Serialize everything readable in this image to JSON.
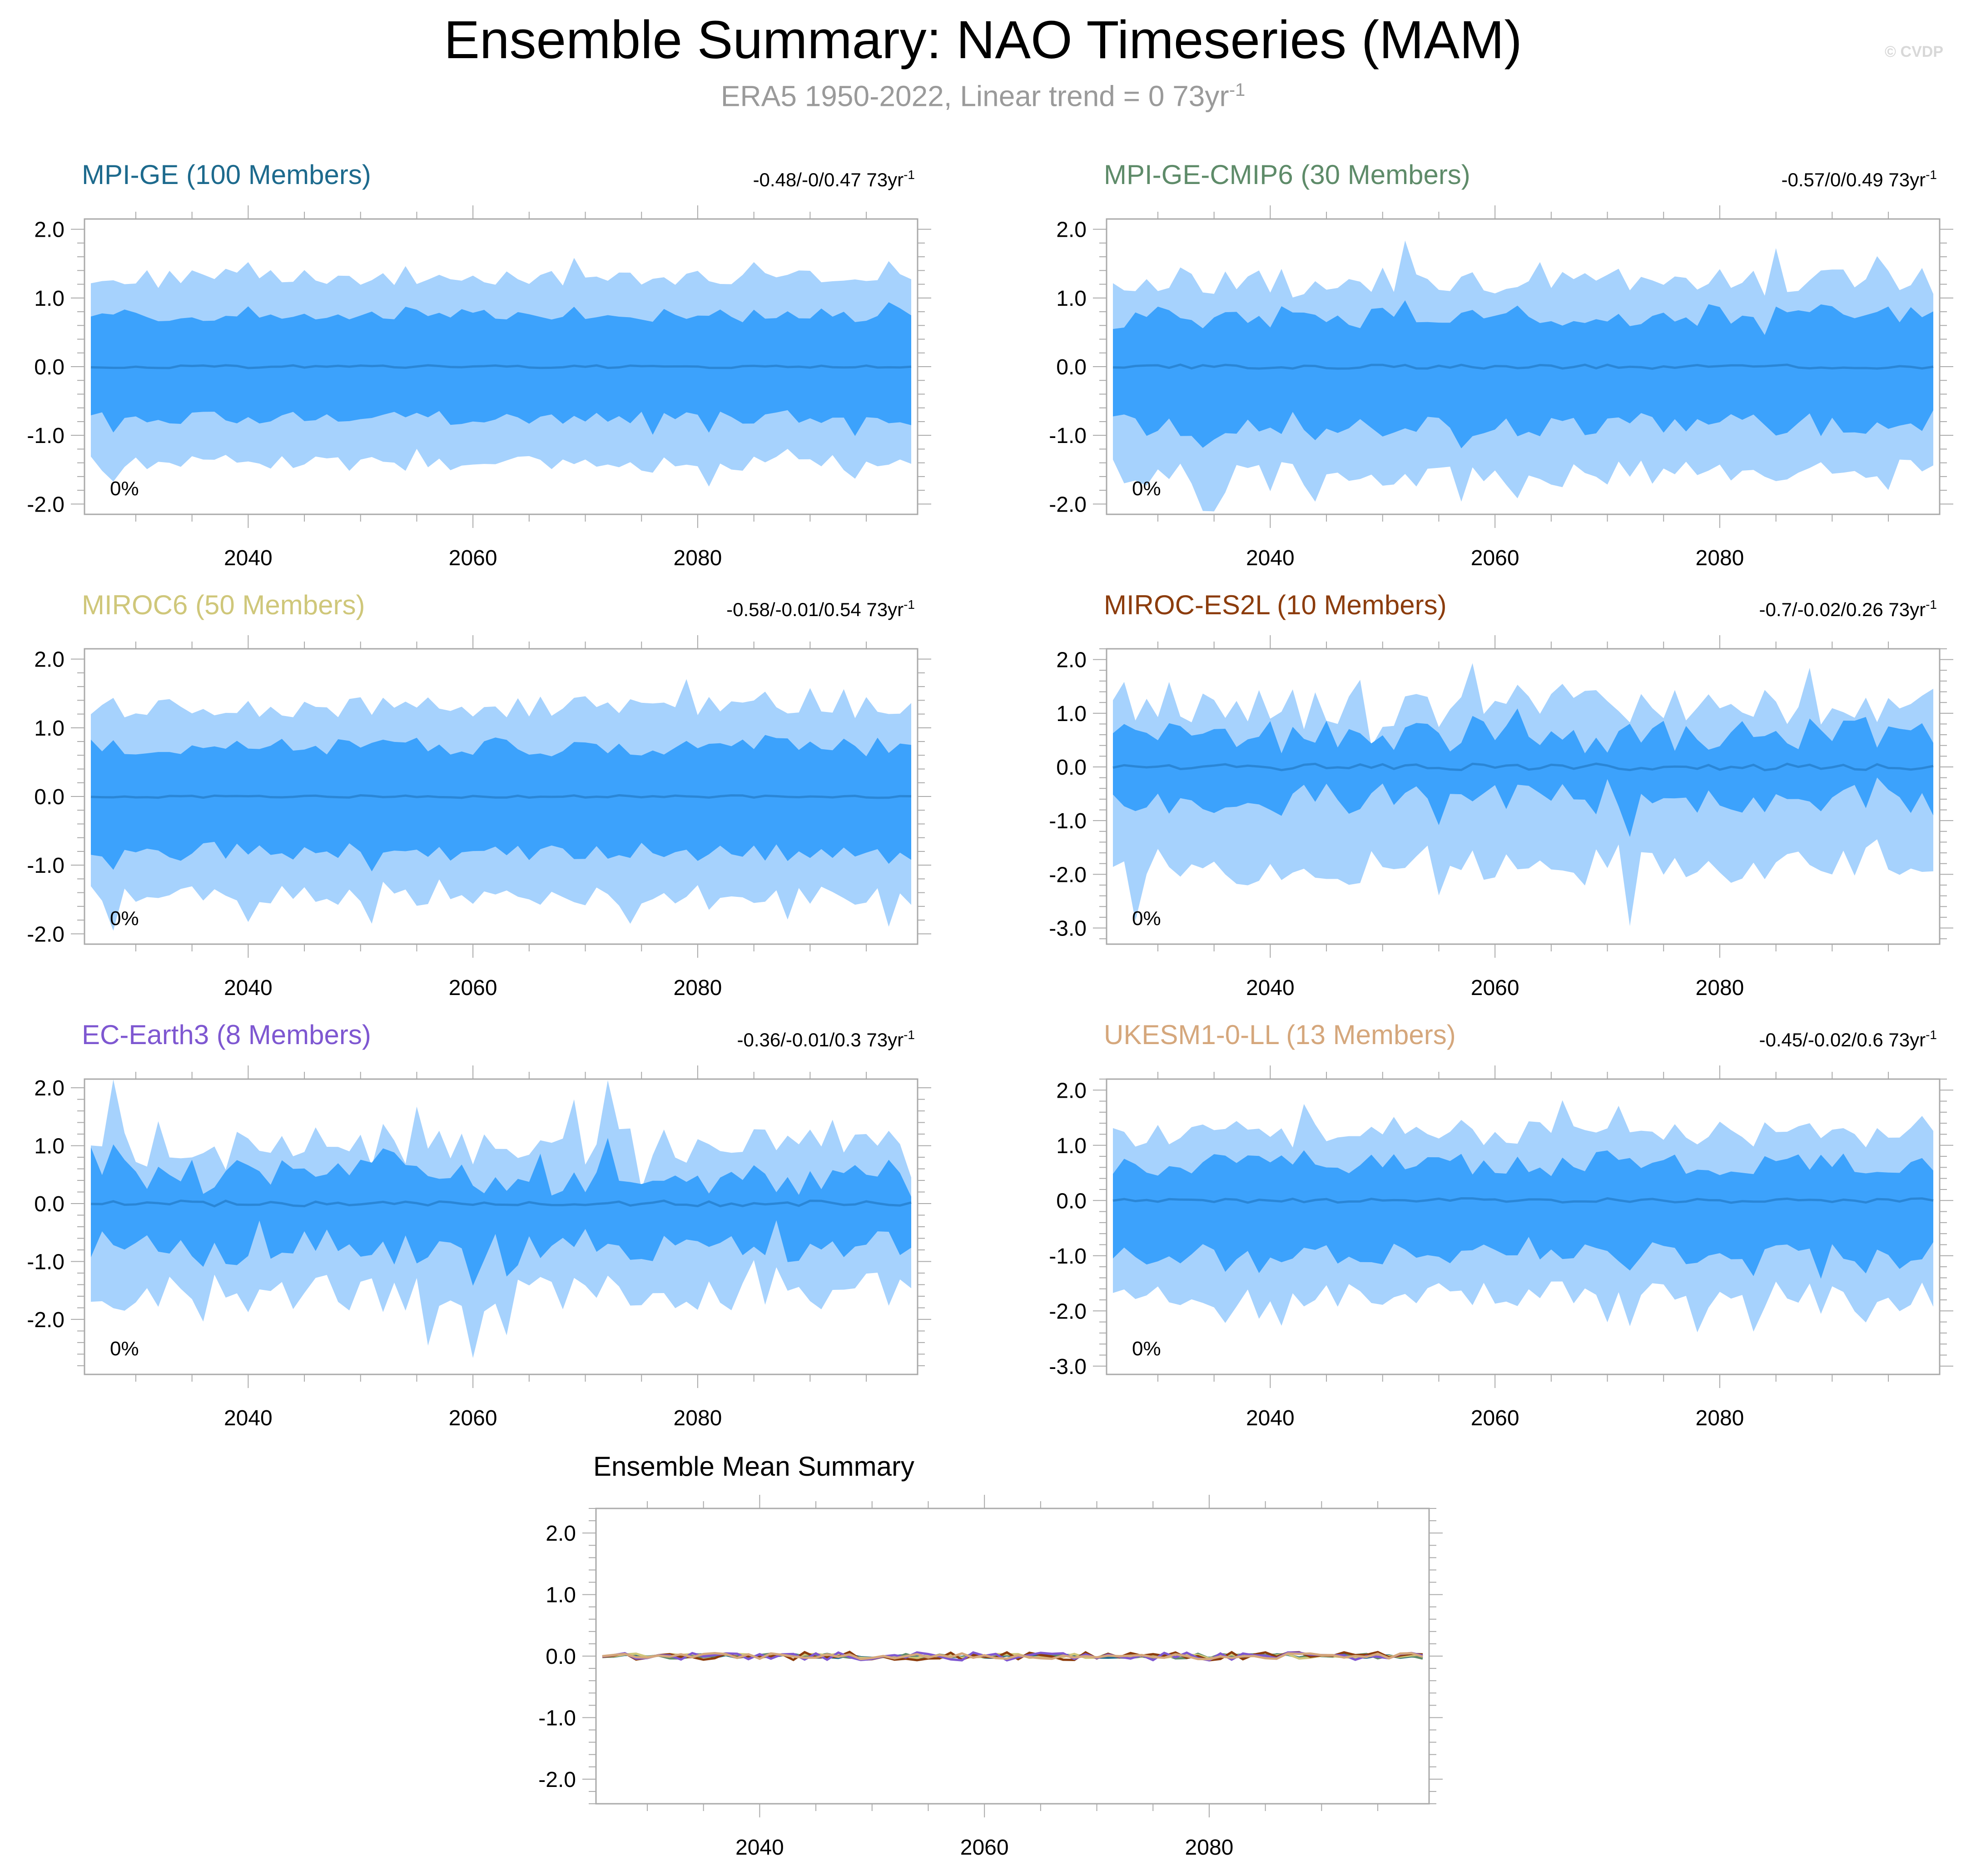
{
  "figure": {
    "title": "Ensemble Summary: NAO Timeseries (MAM)",
    "subtitle_main": "ERA5 1950-2022, Linear trend = 0 73yr",
    "subtitle_exp": "-1",
    "copyright": "© CVDP"
  },
  "colors": {
    "outer_band": "#a6d2fd",
    "inner_band": "#3ca2fc",
    "mean_line": "#2a86d6",
    "frame": "#aaaaaa"
  },
  "chart_data": [
    {
      "type": "area",
      "title": "MPI-GE (100 Members)",
      "title_color": "#1d6a8d",
      "stats": "-0.48/-0/0.47 73yr",
      "stats_exp": "-1",
      "percent_label": "0%",
      "x_range": [
        2026,
        2099
      ],
      "ylim": [
        -2.15,
        2.15
      ],
      "yticks": [
        2.0,
        1.0,
        0.0,
        -1.0,
        -2.0
      ],
      "ytick_labels": [
        "2.0",
        "1.0",
        "0.0",
        "-1.0",
        "-2.0"
      ],
      "xticks": [
        2040,
        2060,
        2080
      ],
      "xtick_labels": [
        "2040",
        "2060",
        "2080"
      ],
      "seed": 101,
      "outer_hi": 1.3,
      "outer_lo": -1.4,
      "inner_hi": 0.75,
      "inner_lo": -0.75,
      "noise": 0.15,
      "mean_noise": 0.02
    },
    {
      "type": "area",
      "title": "MPI-GE-CMIP6 (30 Members)",
      "title_color": "#5e8b69",
      "stats": "-0.57/0/0.49 73yr",
      "stats_exp": "-1",
      "percent_label": "0%",
      "x_range": [
        2026,
        2099
      ],
      "ylim": [
        -2.15,
        2.15
      ],
      "yticks": [
        2.0,
        1.0,
        0.0,
        -1.0,
        -2.0
      ],
      "ytick_labels": [
        "2.0",
        "1.0",
        "0.0",
        "-1.0",
        "-2.0"
      ],
      "xticks": [
        2040,
        2060,
        2080
      ],
      "xtick_labels": [
        "2040",
        "2060",
        "2080"
      ],
      "seed": 202,
      "outer_hi": 1.25,
      "outer_lo": -1.55,
      "inner_hi": 0.72,
      "inner_lo": -0.85,
      "noise": 0.25,
      "mean_noise": 0.03
    },
    {
      "type": "area",
      "title": "MIROC6 (50 Members)",
      "title_color": "#cfc77a",
      "stats": "-0.58/-0.01/0.54 73yr",
      "stats_exp": "-1",
      "percent_label": "0%",
      "x_range": [
        2026,
        2099
      ],
      "ylim": [
        -2.15,
        2.15
      ],
      "yticks": [
        2.0,
        1.0,
        0.0,
        -1.0,
        -2.0
      ],
      "ytick_labels": [
        "2.0",
        "1.0",
        "0.0",
        "-1.0",
        "-2.0"
      ],
      "xticks": [
        2040,
        2060,
        2080
      ],
      "xtick_labels": [
        "2040",
        "2060",
        "2080"
      ],
      "seed": 303,
      "outer_hi": 1.3,
      "outer_lo": -1.45,
      "inner_hi": 0.72,
      "inner_lo": -0.8,
      "noise": 0.2,
      "mean_noise": 0.02
    },
    {
      "type": "area",
      "title": "MIROC-ES2L (10 Members)",
      "title_color": "#8c3c0c",
      "stats": "-0.7/-0.02/0.26 73yr",
      "stats_exp": "-1",
      "percent_label": "0%",
      "x_range": [
        2026,
        2099
      ],
      "ylim": [
        -3.3,
        2.2
      ],
      "yticks": [
        2.0,
        1.0,
        0.0,
        -1.0,
        -2.0,
        -3.0
      ],
      "ytick_labels": [
        "2.0",
        "1.0",
        "0.0",
        "-1.0",
        "-2.0",
        "-3.0"
      ],
      "xticks": [
        2040,
        2060,
        2080
      ],
      "xtick_labels": [
        "2040",
        "2060",
        "2080"
      ],
      "seed": 404,
      "outer_hi": 1.1,
      "outer_lo": -1.85,
      "inner_hi": 0.55,
      "inner_lo": -0.6,
      "noise": 0.45,
      "mean_noise": 0.06
    },
    {
      "type": "area",
      "title": "EC-Earth3 (8 Members)",
      "title_color": "#7e57d1",
      "stats": "-0.36/-0.01/0.3 73yr",
      "stats_exp": "-1",
      "percent_label": "0%",
      "x_range": [
        2026,
        2099
      ],
      "ylim": [
        -2.95,
        2.15
      ],
      "yticks": [
        2.0,
        1.0,
        0.0,
        -1.0,
        -2.0
      ],
      "ytick_labels": [
        "2.0",
        "1.0",
        "0.0",
        "-1.0",
        "-2.0"
      ],
      "xticks": [
        2040,
        2060,
        2080
      ],
      "xtick_labels": [
        "2040",
        "2060",
        "2080"
      ],
      "seed": 505,
      "outer_hi": 0.95,
      "outer_lo": -1.55,
      "inner_hi": 0.45,
      "inner_lo": -0.75,
      "noise": 0.45,
      "mean_noise": 0.05
    },
    {
      "type": "area",
      "title": "UKESM1-0-LL (13 Members)",
      "title_color": "#d5a77c",
      "stats": "-0.45/-0.02/0.6 73yr",
      "stats_exp": "-1",
      "percent_label": "0%",
      "x_range": [
        2026,
        2099
      ],
      "ylim": [
        -3.15,
        2.2
      ],
      "yticks": [
        2.0,
        1.0,
        0.0,
        -1.0,
        -2.0,
        -3.0
      ],
      "ytick_labels": [
        "2.0",
        "1.0",
        "0.0",
        "-1.0",
        "-2.0",
        "-3.0"
      ],
      "xticks": [
        2040,
        2060,
        2080
      ],
      "xtick_labels": [
        "2040",
        "2060",
        "2080"
      ],
      "seed": 606,
      "outer_hi": 1.2,
      "outer_lo": -1.7,
      "inner_hi": 0.65,
      "inner_lo": -0.95,
      "noise": 0.3,
      "mean_noise": 0.04
    },
    {
      "type": "line",
      "title": "Ensemble Mean Summary",
      "title_color": "#000000",
      "x_range": [
        2026,
        2099
      ],
      "ylim": [
        -2.4,
        2.4
      ],
      "yticks": [
        2.0,
        1.0,
        0.0,
        -1.0,
        -2.0
      ],
      "ytick_labels": [
        "2.0",
        "1.0",
        "0.0",
        "-1.0",
        "-2.0"
      ],
      "xticks": [
        2040,
        2060,
        2080
      ],
      "xtick_labels": [
        "2040",
        "2060",
        "2080"
      ],
      "series": [
        {
          "name": "MPI-GE",
          "color": "#1d6a8d",
          "seed": 111,
          "amp": 0.03
        },
        {
          "name": "MPI-GE-CMIP6",
          "color": "#5e8b69",
          "seed": 222,
          "amp": 0.04
        },
        {
          "name": "MIROC6",
          "color": "#cfc77a",
          "seed": 333,
          "amp": 0.04
        },
        {
          "name": "MIROC-ES2L",
          "color": "#8c3c0c",
          "seed": 444,
          "amp": 0.07
        },
        {
          "name": "EC-Earth3",
          "color": "#7e57d1",
          "seed": 555,
          "amp": 0.07
        },
        {
          "name": "UKESM1-0-LL",
          "color": "#d5a77c",
          "seed": 666,
          "amp": 0.05
        }
      ]
    }
  ]
}
